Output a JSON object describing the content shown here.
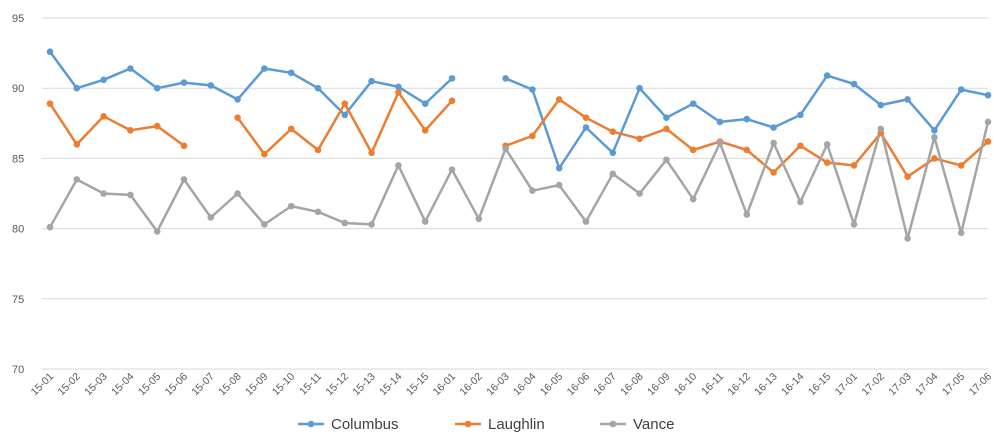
{
  "chart_data": {
    "type": "line",
    "categories": [
      "15-01",
      "15-02",
      "15-03",
      "15-04",
      "15-05",
      "15-06",
      "15-07",
      "15-08",
      "15-09",
      "15-10",
      "15-11",
      "15-12",
      "15-13",
      "15-14",
      "15-15",
      "16-01",
      "16-02",
      "16-03",
      "16-04",
      "16-05",
      "16-06",
      "16-07",
      "16-08",
      "16-09",
      "16-10",
      "16-11",
      "16-12",
      "16-13",
      "16-14",
      "16-15",
      "17-01",
      "17-02",
      "17-03",
      "17-04",
      "17-05",
      "17-06"
    ],
    "series": [
      {
        "name": "Columbus",
        "color": "#5B9BD5",
        "values": [
          92.6,
          90.0,
          90.6,
          91.4,
          90.0,
          90.4,
          90.2,
          89.2,
          91.4,
          91.1,
          90.0,
          88.1,
          90.5,
          90.1,
          88.9,
          90.7,
          null,
          90.7,
          89.9,
          84.3,
          87.2,
          85.4,
          90.0,
          87.9,
          88.9,
          87.6,
          87.8,
          87.2,
          88.1,
          90.9,
          90.3,
          88.8,
          89.2,
          87.0,
          89.9,
          89.5
        ]
      },
      {
        "name": "Laughlin",
        "color": "#ED7D31",
        "values": [
          88.9,
          86.0,
          88.0,
          87.0,
          87.3,
          85.9,
          null,
          87.9,
          85.3,
          87.1,
          85.6,
          88.9,
          85.4,
          89.7,
          87.0,
          89.1,
          null,
          85.9,
          86.6,
          89.2,
          87.9,
          86.9,
          86.4,
          87.1,
          85.6,
          86.2,
          85.6,
          84.0,
          85.9,
          84.7,
          84.5,
          86.8,
          83.7,
          85.0,
          84.5,
          86.2
        ]
      },
      {
        "name": "Vance",
        "color": "#A5A5A5",
        "values": [
          80.1,
          83.5,
          82.5,
          82.4,
          79.8,
          83.5,
          80.8,
          82.5,
          80.3,
          81.6,
          81.2,
          80.4,
          80.3,
          84.5,
          80.5,
          84.2,
          80.7,
          85.7,
          82.7,
          83.1,
          80.5,
          83.9,
          82.5,
          84.9,
          82.1,
          86.1,
          81.0,
          86.1,
          81.9,
          86.0,
          80.3,
          87.1,
          79.3,
          86.5,
          79.7,
          87.6
        ]
      }
    ],
    "yticks": [
      "70",
      "75",
      "80",
      "85",
      "90",
      "95"
    ],
    "ylim": [
      70,
      95
    ],
    "xlabel": "",
    "ylabel": "",
    "title": "",
    "grid": "horizontal",
    "legend_position": "bottom"
  }
}
